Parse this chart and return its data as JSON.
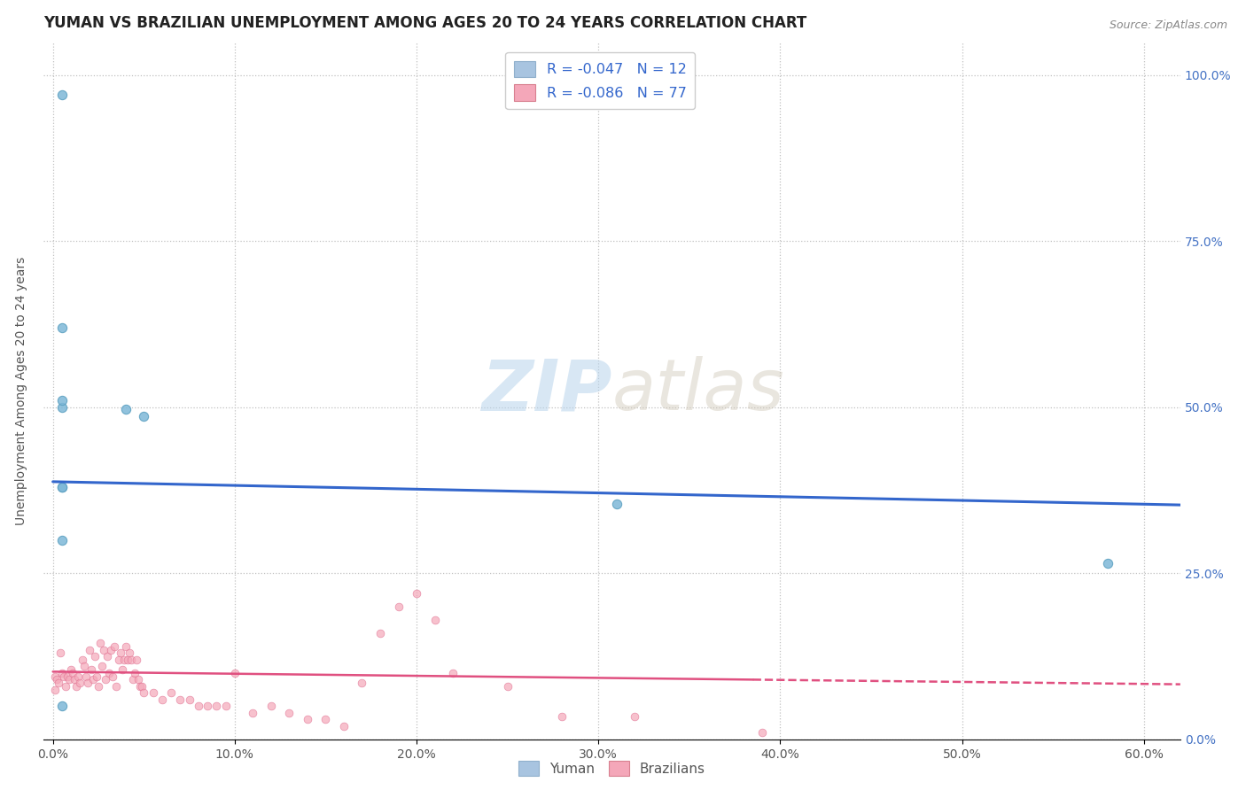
{
  "title": "YUMAN VS BRAZILIAN UNEMPLOYMENT AMONG AGES 20 TO 24 YEARS CORRELATION CHART",
  "source": "Source: ZipAtlas.com",
  "ylabel": "Unemployment Among Ages 20 to 24 years",
  "xlabel_ticks": [
    "0.0%",
    "10.0%",
    "20.0%",
    "30.0%",
    "40.0%",
    "50.0%",
    "60.0%"
  ],
  "xlabel_vals": [
    0.0,
    0.1,
    0.2,
    0.3,
    0.4,
    0.5,
    0.6
  ],
  "ylabel_ticks": [
    "0.0%",
    "25.0%",
    "50.0%",
    "75.0%",
    "100.0%"
  ],
  "ylabel_vals": [
    0.0,
    0.25,
    0.5,
    0.75,
    1.0
  ],
  "xlim": [
    -0.005,
    0.62
  ],
  "ylim": [
    0.0,
    1.05
  ],
  "legend_entries": [
    {
      "label": "R = -0.047   N = 12",
      "color": "#a8c4e0"
    },
    {
      "label": "R = -0.086   N = 77",
      "color": "#f4a7b9"
    }
  ],
  "legend_labels": [
    "Yuman",
    "Brazilians"
  ],
  "yuman_scatter": {
    "x": [
      0.005,
      0.005,
      0.005,
      0.005,
      0.005,
      0.005,
      0.005,
      0.58,
      0.31,
      0.005,
      0.04,
      0.05
    ],
    "y": [
      0.38,
      0.3,
      0.38,
      0.62,
      0.97,
      0.5,
      0.51,
      0.265,
      0.355,
      0.05,
      0.497,
      0.487
    ],
    "color": "#7eb8d8",
    "edgecolor": "#5a9fc0",
    "size": 55,
    "alpha": 0.85
  },
  "brazilians_scatter": {
    "x": [
      0.001,
      0.001,
      0.002,
      0.003,
      0.004,
      0.005,
      0.006,
      0.007,
      0.008,
      0.009,
      0.01,
      0.011,
      0.012,
      0.013,
      0.014,
      0.015,
      0.016,
      0.017,
      0.018,
      0.019,
      0.02,
      0.021,
      0.022,
      0.023,
      0.024,
      0.025,
      0.026,
      0.027,
      0.028,
      0.029,
      0.03,
      0.031,
      0.032,
      0.033,
      0.034,
      0.035,
      0.036,
      0.037,
      0.038,
      0.039,
      0.04,
      0.041,
      0.042,
      0.043,
      0.044,
      0.045,
      0.046,
      0.047,
      0.048,
      0.049,
      0.05,
      0.055,
      0.06,
      0.065,
      0.07,
      0.075,
      0.08,
      0.085,
      0.09,
      0.095,
      0.1,
      0.11,
      0.12,
      0.13,
      0.14,
      0.15,
      0.16,
      0.17,
      0.18,
      0.19,
      0.2,
      0.21,
      0.22,
      0.25,
      0.28,
      0.32,
      0.39
    ],
    "y": [
      0.095,
      0.075,
      0.09,
      0.085,
      0.13,
      0.1,
      0.095,
      0.08,
      0.095,
      0.09,
      0.105,
      0.1,
      0.09,
      0.08,
      0.095,
      0.085,
      0.12,
      0.11,
      0.095,
      0.085,
      0.135,
      0.105,
      0.09,
      0.125,
      0.095,
      0.08,
      0.145,
      0.11,
      0.135,
      0.09,
      0.125,
      0.1,
      0.135,
      0.095,
      0.14,
      0.08,
      0.12,
      0.13,
      0.105,
      0.12,
      0.14,
      0.12,
      0.13,
      0.12,
      0.09,
      0.1,
      0.12,
      0.09,
      0.08,
      0.08,
      0.07,
      0.07,
      0.06,
      0.07,
      0.06,
      0.06,
      0.05,
      0.05,
      0.05,
      0.05,
      0.1,
      0.04,
      0.05,
      0.04,
      0.03,
      0.03,
      0.02,
      0.085,
      0.16,
      0.2,
      0.22,
      0.18,
      0.1,
      0.08,
      0.035,
      0.035,
      0.01
    ],
    "color": "#f4a7b9",
    "edgecolor": "#e07090",
    "size": 40,
    "alpha": 0.7
  },
  "yuman_trendline_solid": {
    "x": [
      0.0,
      0.62
    ],
    "y": [
      0.388,
      0.353
    ],
    "color": "#3366cc",
    "linewidth": 2.2
  },
  "brazilians_trendline_solid": {
    "x": [
      0.0,
      0.385
    ],
    "y": [
      0.102,
      0.09
    ],
    "color": "#e05080",
    "linewidth": 1.8
  },
  "brazilians_trendline_dashed": {
    "x": [
      0.385,
      0.62
    ],
    "y": [
      0.09,
      0.083
    ],
    "color": "#e05080",
    "linewidth": 1.8,
    "linestyle": "--"
  },
  "watermark_zip": "ZIP",
  "watermark_atlas": "atlas",
  "background_color": "#ffffff",
  "grid_color": "#c0c0c0",
  "title_fontsize": 12,
  "axis_label_fontsize": 10,
  "tick_fontsize": 10
}
